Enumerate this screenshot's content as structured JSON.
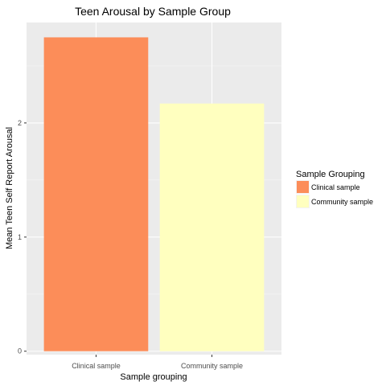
{
  "chart_data": {
    "type": "bar",
    "title": "Teen Arousal by Sample Group",
    "xlabel": "Sample grouping",
    "ylabel": "Mean Teen Self Report Arousal",
    "categories": [
      "Clinical sample",
      "Community sample"
    ],
    "values": [
      2.75,
      2.17
    ],
    "colors": [
      "#fc8d59",
      "#ffffbf"
    ],
    "ylim": [
      -0.03,
      2.88
    ],
    "yticks": [
      0,
      1,
      2
    ],
    "grid": true,
    "panel_background": "#ebebeb",
    "legend": {
      "title": "Sample Grouping",
      "position": "right",
      "entries": [
        "Clinical sample",
        "Community sample"
      ]
    }
  }
}
